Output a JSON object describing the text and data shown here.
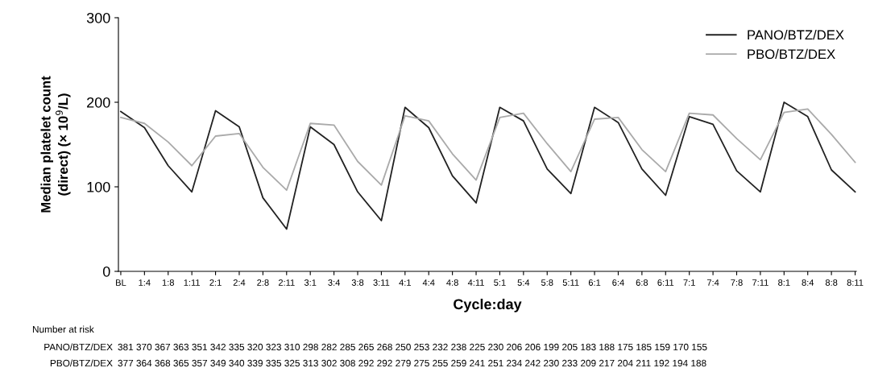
{
  "chart_data": {
    "type": "line",
    "xlabel": "Cycle:day",
    "ylabel": "Median platelet count\n(direct) (× 10$^{9}$/L)",
    "categories": [
      "BL",
      "1:4",
      "1:8",
      "1:11",
      "2:1",
      "2:4",
      "2:8",
      "2:11",
      "3:1",
      "3:4",
      "3:8",
      "3:11",
      "4:1",
      "4:4",
      "4:8",
      "4:11",
      "5:1",
      "5:4",
      "5:8",
      "5:11",
      "6:1",
      "6:4",
      "6:8",
      "6:11",
      "7:1",
      "7:4",
      "7:8",
      "7:11",
      "8:1",
      "8:4",
      "8:8",
      "8:11"
    ],
    "series": [
      {
        "name": "PANO/BTZ/DEX",
        "color": "#222222",
        "values": [
          189,
          170,
          125,
          94,
          190,
          171,
          87,
          50,
          171,
          150,
          94,
          60,
          194,
          170,
          113,
          81,
          194,
          178,
          121,
          92,
          194,
          176,
          121,
          90,
          183,
          174,
          119,
          94,
          200,
          183,
          120,
          94
        ]
      },
      {
        "name": "PBO/BTZ/DEX",
        "color": "#aaaaaa",
        "values": [
          182,
          175,
          153,
          125,
          160,
          163,
          123,
          96,
          175,
          173,
          130,
          102,
          184,
          178,
          139,
          108,
          182,
          187,
          151,
          118,
          180,
          182,
          144,
          118,
          187,
          185,
          157,
          132,
          188,
          192,
          162,
          129
        ]
      }
    ],
    "ylim": [
      0,
      300
    ],
    "yticks": [
      0,
      100,
      200,
      300
    ],
    "grid": false,
    "legend": "top right",
    "marker": "none",
    "line_style": "solid",
    "annotations": [
      "Number at risk",
      "PANO/BTZ/DEX",
      "381 370 367 363 351 342 335 320 323 310 298 282 285 265 268 250 253 232 238 225 230 206 206 199 205 183 188 175 185 159 170 155",
      "PBO/BTZ/DEX",
      "377 364 368 365 357 349 340 339 335 325 313 302 308 292 292 279 275 255 259 241 251 234 242 230 233 209 217 204 211 192 194 188"
    ]
  }
}
